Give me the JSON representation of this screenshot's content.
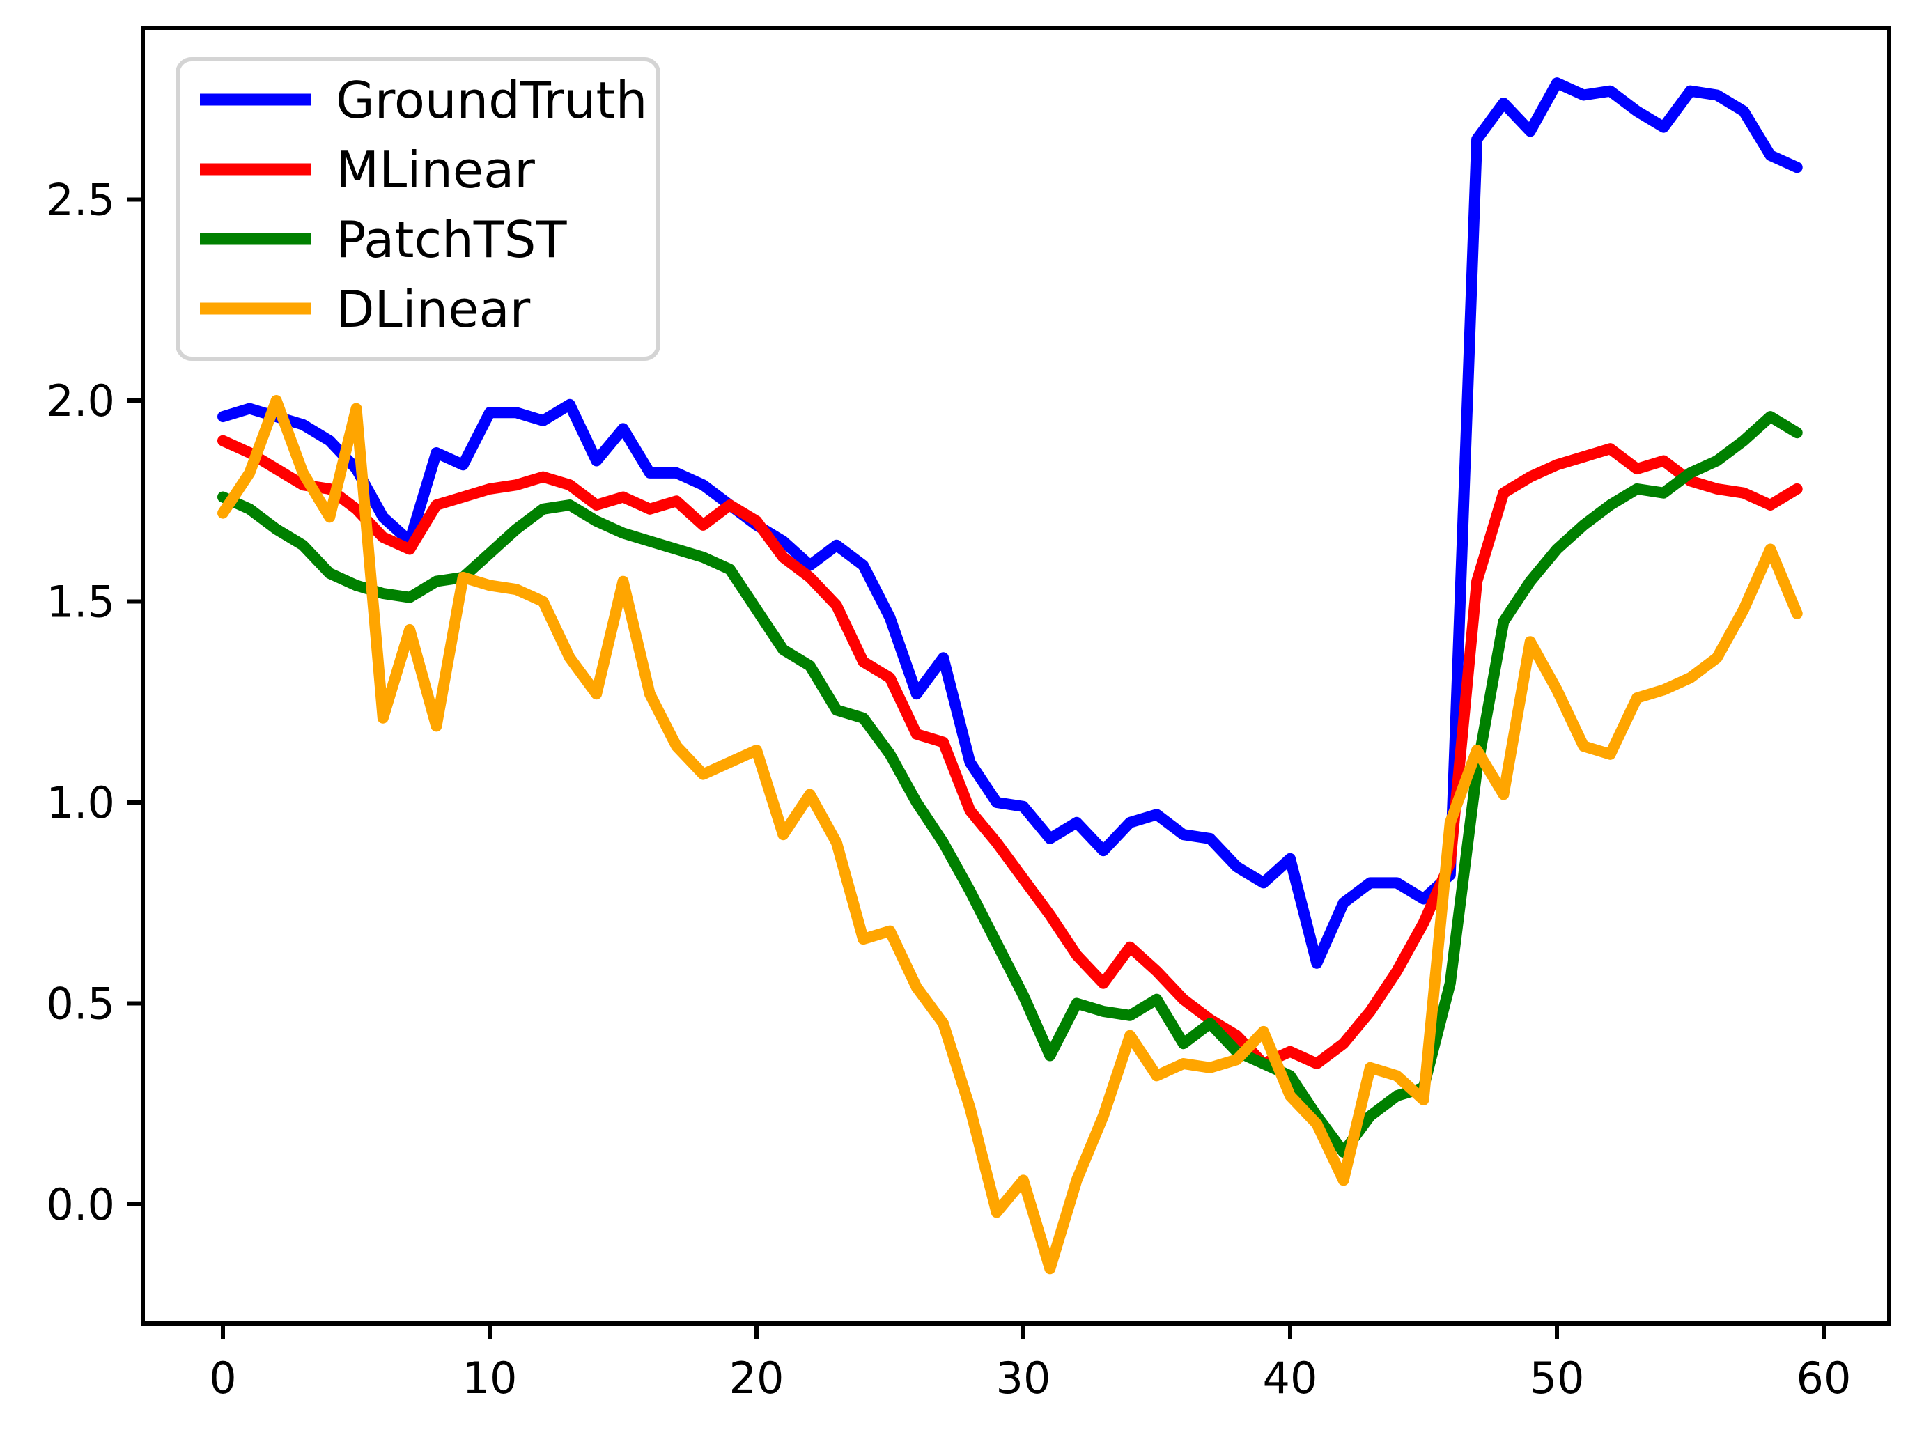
{
  "figure": {
    "background": "#ffffff",
    "axis_color": "#000000",
    "legend": {
      "border_color": "#d4d4d4",
      "fill": "#ffffff",
      "position": "upper left",
      "entries": [
        {
          "label": "GroundTruth",
          "color": "#0000ff"
        },
        {
          "label": "MLinear",
          "color": "#ff0000"
        },
        {
          "label": "PatchTST",
          "color": "#008000"
        },
        {
          "label": "DLinear",
          "color": "#ffa500"
        }
      ]
    }
  },
  "chart_data": {
    "type": "line",
    "title": "",
    "xlabel": "",
    "ylabel": "",
    "grid": false,
    "legend_position": "upper left",
    "xticks": [
      0,
      10,
      20,
      30,
      40,
      50,
      60
    ],
    "yticks": [
      "0.0",
      "0.5",
      "1.0",
      "1.5",
      "2.0",
      "2.5"
    ],
    "ytick_values": [
      0.0,
      0.5,
      1.0,
      1.5,
      2.0,
      2.5
    ],
    "xlim": [
      -3.0,
      62.5
    ],
    "ylim": [
      -0.3,
      2.95
    ],
    "n_points": 60,
    "line_width": 16,
    "series": [
      {
        "name": "GroundTruth",
        "color": "#0000ff",
        "values": [
          1.96,
          1.98,
          1.96,
          1.94,
          1.9,
          1.83,
          1.71,
          1.65,
          1.87,
          1.84,
          1.97,
          1.97,
          1.95,
          1.99,
          1.85,
          1.93,
          1.82,
          1.82,
          1.79,
          1.74,
          1.69,
          1.65,
          1.59,
          1.64,
          1.59,
          1.46,
          1.27,
          1.36,
          1.1,
          1.0,
          0.99,
          0.91,
          0.95,
          0.88,
          0.95,
          0.97,
          0.92,
          0.91,
          0.84,
          0.8,
          0.86,
          0.6,
          0.75,
          0.8,
          0.8,
          0.76,
          0.82,
          2.65,
          2.74,
          2.67,
          2.79,
          2.76,
          2.77,
          2.72,
          2.68,
          2.77,
          2.76,
          2.72,
          2.61,
          2.58
        ]
      },
      {
        "name": "MLinear",
        "color": "#ff0000",
        "values": [
          1.9,
          1.87,
          1.83,
          1.79,
          1.78,
          1.73,
          1.66,
          1.63,
          1.74,
          1.76,
          1.78,
          1.79,
          1.81,
          1.79,
          1.74,
          1.76,
          1.73,
          1.75,
          1.69,
          1.74,
          1.7,
          1.61,
          1.56,
          1.49,
          1.35,
          1.31,
          1.17,
          1.15,
          0.98,
          0.9,
          0.81,
          0.72,
          0.62,
          0.55,
          0.64,
          0.58,
          0.51,
          0.46,
          0.42,
          0.35,
          0.38,
          0.35,
          0.4,
          0.48,
          0.58,
          0.7,
          0.85,
          1.55,
          1.77,
          1.81,
          1.84,
          1.86,
          1.88,
          1.83,
          1.85,
          1.8,
          1.78,
          1.77,
          1.74,
          1.78
        ]
      },
      {
        "name": "PatchTST",
        "color": "#008000",
        "values": [
          1.76,
          1.73,
          1.68,
          1.64,
          1.57,
          1.54,
          1.52,
          1.51,
          1.55,
          1.56,
          1.62,
          1.68,
          1.73,
          1.74,
          1.7,
          1.67,
          1.65,
          1.63,
          1.61,
          1.58,
          1.48,
          1.38,
          1.34,
          1.23,
          1.21,
          1.12,
          1.0,
          0.9,
          0.78,
          0.65,
          0.52,
          0.37,
          0.5,
          0.48,
          0.47,
          0.51,
          0.4,
          0.45,
          0.38,
          0.35,
          0.32,
          0.22,
          0.13,
          0.22,
          0.27,
          0.29,
          0.55,
          1.08,
          1.45,
          1.55,
          1.63,
          1.69,
          1.74,
          1.78,
          1.77,
          1.82,
          1.85,
          1.9,
          1.96,
          1.92
        ]
      },
      {
        "name": "DLinear",
        "color": "#ffa500",
        "values": [
          1.72,
          1.82,
          2.0,
          1.82,
          1.71,
          1.98,
          1.21,
          1.43,
          1.19,
          1.56,
          1.54,
          1.53,
          1.5,
          1.36,
          1.27,
          1.55,
          1.27,
          1.14,
          1.07,
          1.1,
          1.13,
          0.92,
          1.02,
          0.9,
          0.66,
          0.68,
          0.54,
          0.45,
          0.24,
          -0.02,
          0.06,
          -0.16,
          0.06,
          0.22,
          0.42,
          0.32,
          0.35,
          0.34,
          0.36,
          0.43,
          0.27,
          0.2,
          0.06,
          0.34,
          0.32,
          0.26,
          0.95,
          1.13,
          1.02,
          1.4,
          1.28,
          1.14,
          1.12,
          1.26,
          1.28,
          1.31,
          1.36,
          1.48,
          1.63,
          1.47
        ]
      }
    ]
  }
}
